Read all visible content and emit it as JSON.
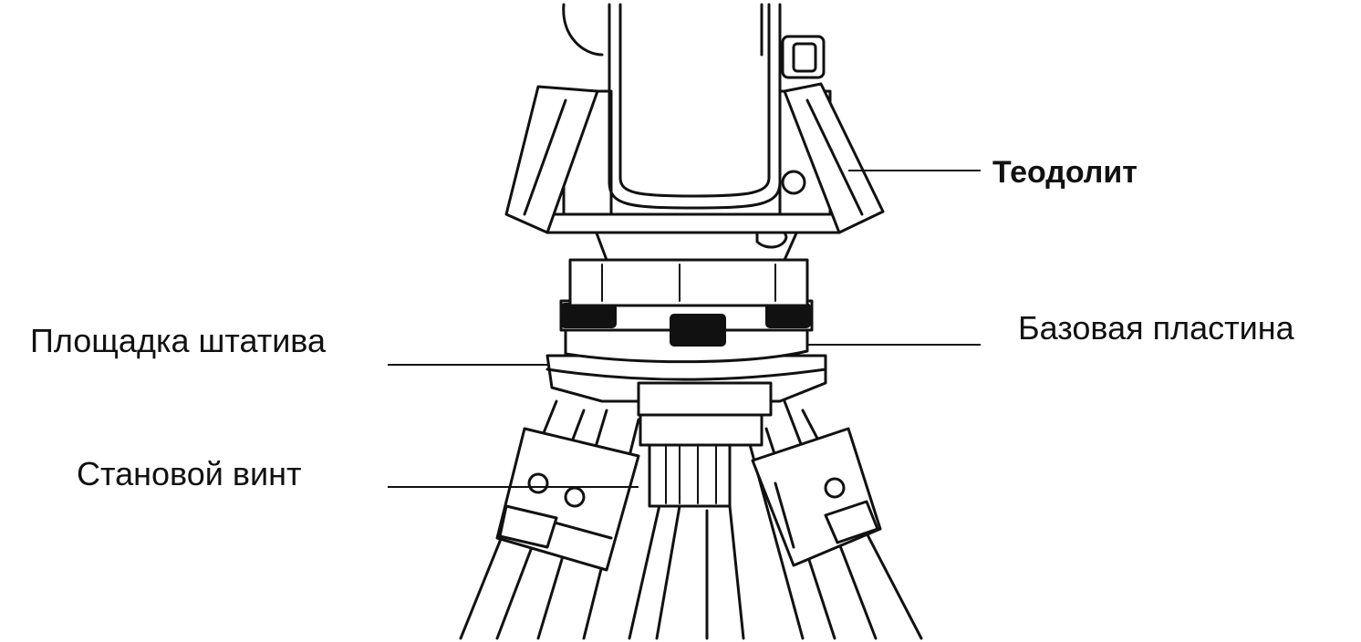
{
  "labels": {
    "theodolite": "Теодолит",
    "base_plate": "Базовая пластина",
    "tripod_head": "Площадка штатива",
    "centering_screw": "Становой винт"
  }
}
